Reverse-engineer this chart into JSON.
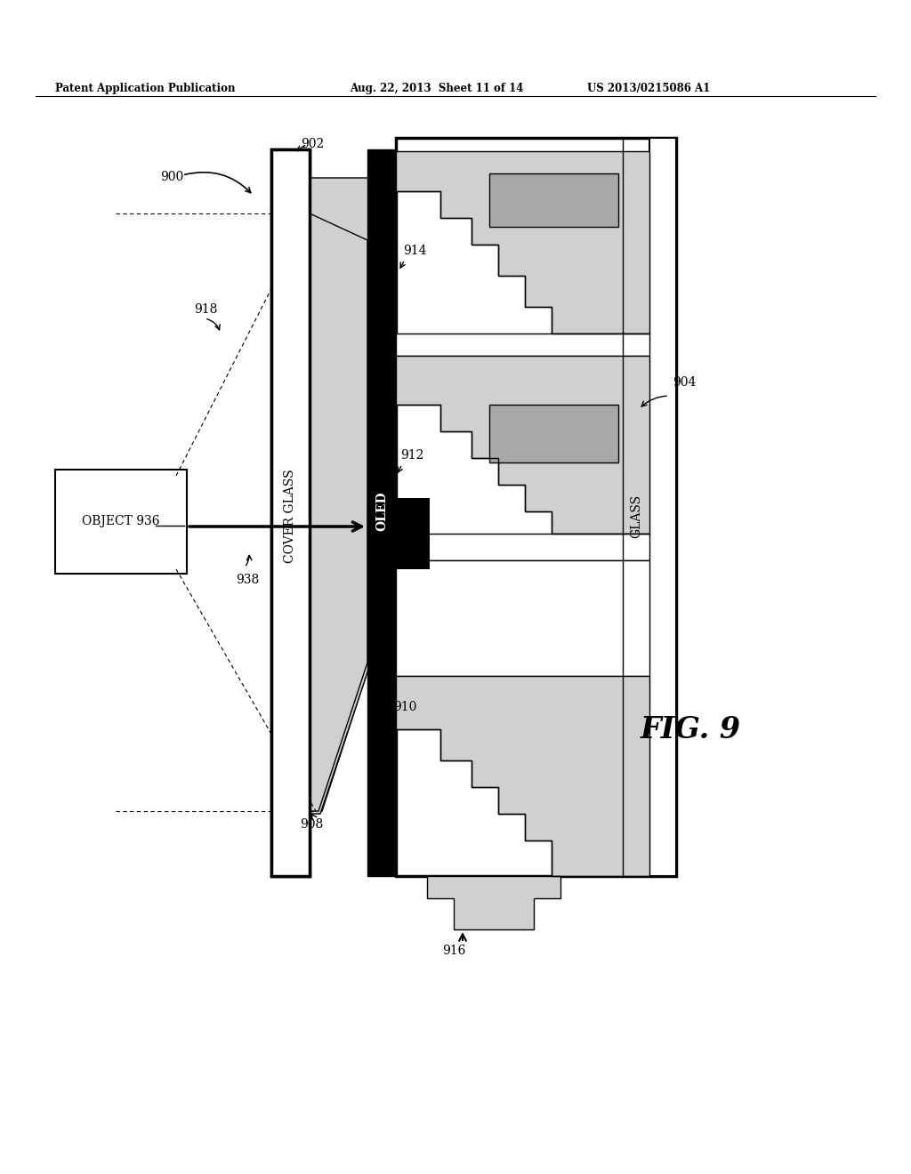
{
  "header_left": "Patent Application Publication",
  "header_center": "Aug. 22, 2013  Sheet 11 of 14",
  "header_right": "US 2013/0215086 A1",
  "fig_label": "FIG. 9",
  "background_color": "#ffffff",
  "gray_light": "#d0d0d0",
  "gray_med": "#a8a8a8",
  "black": "#000000",
  "white": "#ffffff"
}
